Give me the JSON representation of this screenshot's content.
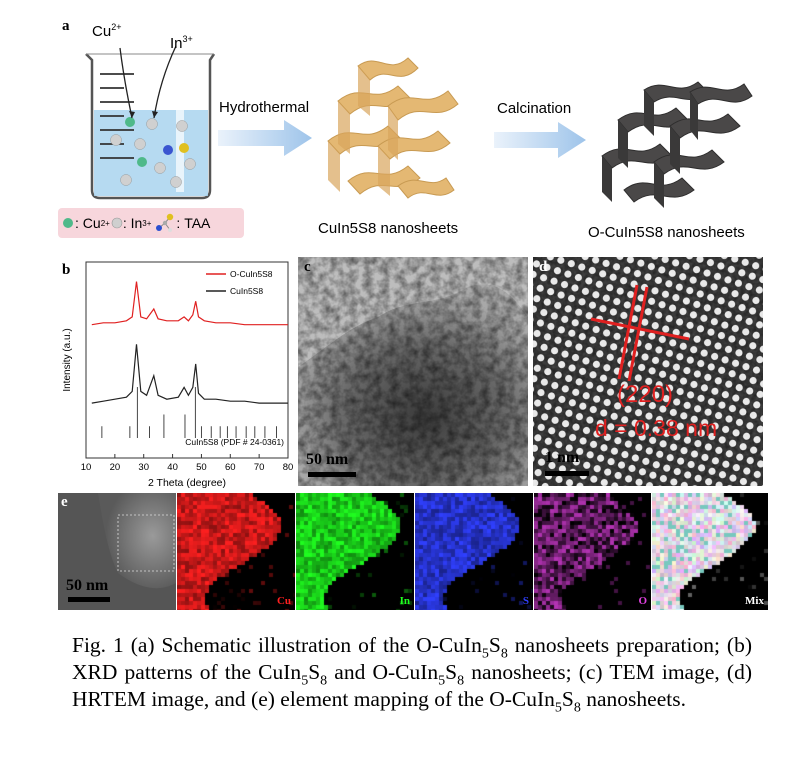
{
  "panel_labels": {
    "a": "a",
    "b": "b",
    "c": "c",
    "d": "d",
    "e": "e"
  },
  "schematic": {
    "ion_cu": "Cu",
    "ion_cu_sup": "2+",
    "ion_in": "In",
    "ion_in_sup": "3+",
    "step1": "Hydrothermal",
    "step2": "Calcination",
    "product1": "CuIn5S8 nanosheets",
    "product2": "O-CuIn5S8 nanosheets",
    "legend": {
      "cu": "Cu",
      "cu_sup": "2+",
      "in": "In",
      "in_sup": "3+",
      "taa": "TAA",
      "colors": {
        "cu": "#4fb98a",
        "in": "#c8c8c8",
        "taa_s": "#e0c020",
        "taa_n": "#2b4fd0"
      }
    }
  },
  "xrd": {
    "ylabel": "Intensity (a.u.)",
    "xlabel": "2 Theta (degree)",
    "pdf_label": "CuIn5S8 (PDF # 24-0361)",
    "legend": [
      {
        "name": "O-CuIn5S8",
        "color": "#e02020"
      },
      {
        "name": "CuIn5S8",
        "color": "#222222"
      }
    ]
  },
  "chart_data": {
    "type": "line",
    "xlabel": "2 Theta (degree)",
    "ylabel": "Intensity (a.u.)",
    "xlim": [
      10,
      80
    ],
    "x_ticks": [
      10,
      20,
      30,
      40,
      50,
      60,
      70,
      80
    ],
    "series": [
      {
        "name": "O-CuIn5S8",
        "color": "#e02020",
        "x": [
          12,
          16,
          20,
          24,
          26,
          27.5,
          29,
          31,
          33.5,
          35,
          38,
          42,
          44,
          45.5,
          47,
          48,
          49,
          51,
          55,
          60,
          65,
          70,
          75,
          80
        ],
        "y": [
          0.68,
          0.69,
          0.69,
          0.7,
          0.72,
          0.9,
          0.72,
          0.71,
          0.76,
          0.71,
          0.7,
          0.7,
          0.72,
          0.7,
          0.73,
          0.8,
          0.72,
          0.7,
          0.69,
          0.69,
          0.68,
          0.68,
          0.68,
          0.68
        ]
      },
      {
        "name": "CuIn5S8",
        "color": "#222222",
        "x": [
          12,
          16,
          20,
          24,
          26,
          27.5,
          29,
          31,
          33.5,
          35,
          38,
          42,
          44,
          45.5,
          47,
          48,
          49,
          51,
          55,
          60,
          65,
          70,
          75,
          80
        ],
        "y": [
          0.28,
          0.29,
          0.3,
          0.31,
          0.34,
          0.58,
          0.34,
          0.32,
          0.42,
          0.32,
          0.3,
          0.31,
          0.36,
          0.32,
          0.36,
          0.48,
          0.33,
          0.3,
          0.3,
          0.29,
          0.29,
          0.28,
          0.28,
          0.28
        ]
      }
    ],
    "reference_lines": [
      15.5,
      25.2,
      27.8,
      32.0,
      37.0,
      44.3,
      47.9,
      50.0,
      53.4,
      56.5,
      59.0,
      62.0,
      65.5,
      68.5,
      72.0,
      76.0
    ]
  },
  "tem": {
    "scale": "50 nm"
  },
  "hrtem": {
    "plane": "(220)",
    "d": "d = 0.38 nm",
    "scale": "1 nm"
  },
  "mapping": {
    "scale": "50 nm",
    "tiles": [
      {
        "label": "Cu",
        "color": "#ff2020"
      },
      {
        "label": "In",
        "color": "#20ff20"
      },
      {
        "label": "S",
        "color": "#3040ff"
      },
      {
        "label": "O",
        "color": "#e040e0"
      },
      {
        "label": "Mix",
        "color": "#ffffff"
      }
    ]
  },
  "caption": {
    "p1": "Fig. 1 (a) Schematic illustration of the O-CuIn",
    "s1": "5",
    "p2": "S",
    "s2": "8",
    "p3": " nanosheets preparation; (b) XRD patterns of the CuIn",
    "s3": "5",
    "p4": "S",
    "s4": "8",
    "p5": " and O-CuIn",
    "s5": "5",
    "p6": "S",
    "s6": "8",
    "p7": " nanosheets; (c) TEM image, (d) HRTEM image, and (e) element mapping of the O-CuIn",
    "s7": "5",
    "p8": "S",
    "s8": "8",
    "p9": " nanosheets."
  }
}
